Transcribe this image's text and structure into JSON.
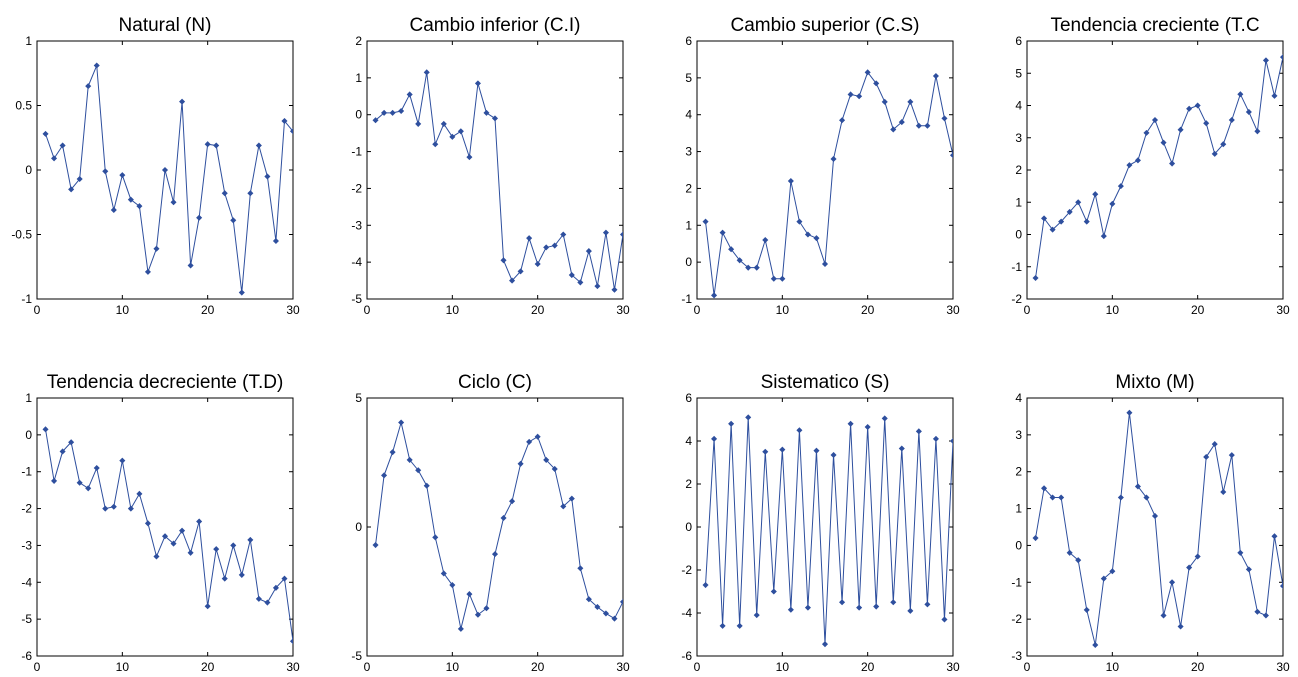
{
  "chart_data": [
    {
      "type": "line",
      "title": "Natural (N)",
      "xlim": [
        0,
        30
      ],
      "ylim": [
        -1,
        1
      ],
      "xticks": [
        0,
        10,
        20,
        30
      ],
      "yticks": [
        -1,
        -0.5,
        0,
        0.5,
        1
      ],
      "xlabel": "",
      "ylabel": "",
      "grid": false,
      "color": "#2E4F9E",
      "marker": "diamond",
      "x": [
        1,
        2,
        3,
        4,
        5,
        6,
        7,
        8,
        9,
        10,
        11,
        12,
        13,
        14,
        15,
        16,
        17,
        18,
        19,
        20,
        21,
        22,
        23,
        24,
        25,
        26,
        27,
        28,
        29,
        30
      ],
      "y": [
        0.28,
        0.09,
        0.19,
        -0.15,
        -0.07,
        0.65,
        0.81,
        -0.01,
        -0.31,
        -0.04,
        -0.23,
        -0.28,
        -0.79,
        -0.61,
        0.0,
        -0.25,
        0.53,
        -0.74,
        -0.37,
        0.2,
        0.19,
        -0.18,
        -0.39,
        -0.95,
        -0.18,
        0.19,
        -0.05,
        -0.55,
        0.38,
        0.3
      ]
    },
    {
      "type": "line",
      "title": "Cambio inferior (C.I)",
      "xlim": [
        0,
        30
      ],
      "ylim": [
        -5,
        2
      ],
      "xticks": [
        0,
        10,
        20,
        30
      ],
      "yticks": [
        -5,
        -4,
        -3,
        -2,
        -1,
        0,
        1,
        2
      ],
      "xlabel": "",
      "ylabel": "",
      "grid": false,
      "color": "#2E4F9E",
      "marker": "diamond",
      "x": [
        1,
        2,
        3,
        4,
        5,
        6,
        7,
        8,
        9,
        10,
        11,
        12,
        13,
        14,
        15,
        16,
        17,
        18,
        19,
        20,
        21,
        22,
        23,
        24,
        25,
        26,
        27,
        28,
        29,
        30
      ],
      "y": [
        -0.15,
        0.05,
        0.05,
        0.1,
        0.55,
        -0.25,
        1.15,
        -0.8,
        -0.25,
        -0.6,
        -0.45,
        -1.15,
        0.85,
        0.05,
        -0.1,
        -3.95,
        -4.5,
        -4.25,
        -3.35,
        -4.05,
        -3.6,
        -3.55,
        -3.25,
        -4.35,
        -4.55,
        -3.7,
        -4.65,
        -3.2,
        -4.75,
        -3.25
      ]
    },
    {
      "type": "line",
      "title": "Cambio superior (C.S)",
      "xlim": [
        0,
        30
      ],
      "ylim": [
        -1,
        6
      ],
      "xticks": [
        0,
        10,
        20,
        30
      ],
      "yticks": [
        -1,
        0,
        1,
        2,
        3,
        4,
        5,
        6
      ],
      "xlabel": "",
      "ylabel": "",
      "grid": false,
      "color": "#2E4F9E",
      "marker": "diamond",
      "x": [
        1,
        2,
        3,
        4,
        5,
        6,
        7,
        8,
        9,
        10,
        11,
        12,
        13,
        14,
        15,
        16,
        17,
        18,
        19,
        20,
        21,
        22,
        23,
        24,
        25,
        26,
        27,
        28,
        29,
        30
      ],
      "y": [
        1.1,
        -0.9,
        0.8,
        0.35,
        0.05,
        -0.15,
        -0.15,
        0.6,
        -0.45,
        -0.45,
        2.2,
        1.1,
        0.75,
        0.65,
        -0.05,
        2.8,
        3.85,
        4.55,
        4.5,
        5.15,
        4.85,
        4.35,
        3.6,
        3.8,
        4.35,
        3.7,
        3.7,
        5.05,
        3.9,
        2.9
      ]
    },
    {
      "type": "line",
      "title": "Tendencia creciente (T.C",
      "xlim": [
        0,
        30
      ],
      "ylim": [
        -2,
        6
      ],
      "xticks": [
        0,
        10,
        20,
        30
      ],
      "yticks": [
        -2,
        -1,
        0,
        1,
        2,
        3,
        4,
        5,
        6
      ],
      "xlabel": "",
      "ylabel": "",
      "grid": false,
      "color": "#2E4F9E",
      "marker": "diamond",
      "x": [
        1,
        2,
        3,
        4,
        5,
        6,
        7,
        8,
        9,
        10,
        11,
        12,
        13,
        14,
        15,
        16,
        17,
        18,
        19,
        20,
        21,
        22,
        23,
        24,
        25,
        26,
        27,
        28,
        29,
        30
      ],
      "y": [
        -1.35,
        0.5,
        0.15,
        0.4,
        0.7,
        1.0,
        0.4,
        1.25,
        -0.05,
        0.95,
        1.5,
        2.15,
        2.3,
        3.15,
        3.55,
        2.85,
        2.2,
        3.25,
        3.9,
        4.0,
        3.45,
        2.5,
        2.8,
        3.55,
        4.35,
        3.8,
        3.2,
        5.4,
        4.3,
        5.5
      ]
    },
    {
      "type": "line",
      "title": "Tendencia decreciente (T.D)",
      "xlim": [
        0,
        30
      ],
      "ylim": [
        -6,
        1
      ],
      "xticks": [
        0,
        10,
        20,
        30
      ],
      "yticks": [
        -6,
        -5,
        -4,
        -3,
        -2,
        -1,
        0,
        1
      ],
      "xlabel": "",
      "ylabel": "",
      "grid": false,
      "color": "#2E4F9E",
      "marker": "diamond",
      "x": [
        1,
        2,
        3,
        4,
        5,
        6,
        7,
        8,
        9,
        10,
        11,
        12,
        13,
        14,
        15,
        16,
        17,
        18,
        19,
        20,
        21,
        22,
        23,
        24,
        25,
        26,
        27,
        28,
        29,
        30
      ],
      "y": [
        0.15,
        -1.25,
        -0.45,
        -0.2,
        -1.3,
        -1.45,
        -0.9,
        -2.0,
        -1.95,
        -0.7,
        -2.0,
        -1.6,
        -2.4,
        -3.3,
        -2.75,
        -2.95,
        -2.6,
        -3.2,
        -2.35,
        -4.65,
        -3.1,
        -3.9,
        -3.0,
        -3.8,
        -2.85,
        -4.45,
        -4.55,
        -4.15,
        -3.9,
        -5.6
      ]
    },
    {
      "type": "line",
      "title": "Ciclo (C)",
      "xlim": [
        0,
        30
      ],
      "ylim": [
        -5,
        5
      ],
      "xticks": [
        0,
        10,
        20,
        30
      ],
      "yticks": [
        -5,
        0,
        5
      ],
      "xlabel": "",
      "ylabel": "",
      "grid": false,
      "color": "#2E4F9E",
      "marker": "diamond",
      "x": [
        1,
        2,
        3,
        4,
        5,
        6,
        7,
        8,
        9,
        10,
        11,
        12,
        13,
        14,
        15,
        16,
        17,
        18,
        19,
        20,
        21,
        22,
        23,
        24,
        25,
        26,
        27,
        28,
        29,
        30
      ],
      "y": [
        -0.7,
        2.0,
        2.9,
        4.05,
        2.6,
        2.2,
        1.6,
        -0.4,
        -1.8,
        -2.25,
        -3.95,
        -2.6,
        -3.4,
        -3.15,
        -1.05,
        0.35,
        1.0,
        2.45,
        3.3,
        3.5,
        2.6,
        2.25,
        0.8,
        1.1,
        -1.6,
        -2.8,
        -3.1,
        -3.35,
        -3.55,
        -2.9
      ]
    },
    {
      "type": "line",
      "title": "Sistematico (S)",
      "xlim": [
        0,
        30
      ],
      "ylim": [
        -6,
        6
      ],
      "xticks": [
        0,
        10,
        20,
        30
      ],
      "yticks": [
        -6,
        -4,
        -2,
        0,
        2,
        4,
        6
      ],
      "xlabel": "",
      "ylabel": "",
      "grid": false,
      "color": "#2E4F9E",
      "marker": "diamond",
      "x": [
        1,
        2,
        3,
        4,
        5,
        6,
        7,
        8,
        9,
        10,
        11,
        12,
        13,
        14,
        15,
        16,
        17,
        18,
        19,
        20,
        21,
        22,
        23,
        24,
        25,
        26,
        27,
        28,
        29,
        30
      ],
      "y": [
        -2.7,
        4.1,
        -4.6,
        4.8,
        -4.6,
        5.1,
        -4.1,
        3.5,
        -3.0,
        3.6,
        -3.85,
        4.5,
        -3.75,
        3.55,
        -5.45,
        3.35,
        -3.5,
        4.8,
        -3.75,
        4.65,
        -3.7,
        5.05,
        -3.5,
        3.65,
        -3.9,
        4.45,
        -3.6,
        4.1,
        -4.3,
        4.0
      ]
    },
    {
      "type": "line",
      "title": "Mixto (M)",
      "xlim": [
        0,
        30
      ],
      "ylim": [
        -3,
        4
      ],
      "xticks": [
        0,
        10,
        20,
        30
      ],
      "yticks": [
        -3,
        -2,
        -1,
        0,
        1,
        2,
        3,
        4
      ],
      "xlabel": "",
      "ylabel": "",
      "grid": false,
      "color": "#2E4F9E",
      "marker": "diamond",
      "x": [
        1,
        2,
        3,
        4,
        5,
        6,
        7,
        8,
        9,
        10,
        11,
        12,
        13,
        14,
        15,
        16,
        17,
        18,
        19,
        20,
        21,
        22,
        23,
        24,
        25,
        26,
        27,
        28,
        29,
        30
      ],
      "y": [
        0.2,
        1.55,
        1.3,
        1.3,
        -0.2,
        -0.4,
        -1.75,
        -2.7,
        -0.9,
        -0.7,
        1.3,
        3.6,
        1.6,
        1.3,
        0.8,
        -1.9,
        -1.0,
        -2.2,
        -0.6,
        -0.3,
        2.4,
        2.75,
        1.45,
        2.45,
        -0.2,
        -0.65,
        -1.8,
        -1.9,
        0.25,
        -1.1
      ]
    }
  ]
}
